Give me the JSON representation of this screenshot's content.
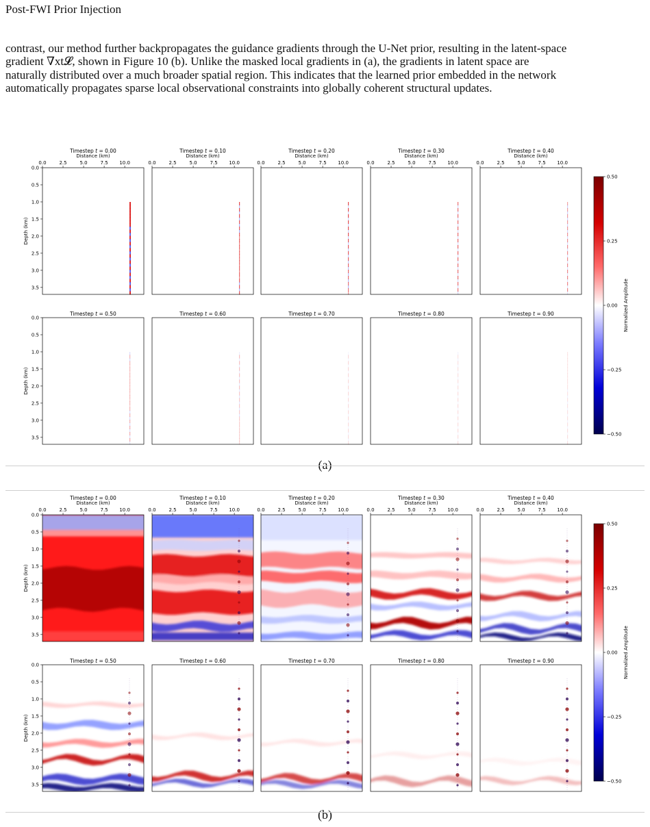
{
  "page": {
    "running_header": "Post-FWI Prior Injection",
    "paragraph_lines": [
      "contrast, our method further backpropagates the guidance gradients through the U-Net prior, resulting in the latent-space",
      "gradient ∇xt𝓛, shown in Figure 10 (b). Unlike the masked local gradients in (a), the gradients in latent space are",
      "naturally distributed over a much broader spatial region. This indicates that the learned prior embedded in the network",
      "automatically propagates sparse local observational constraints into globally coherent structural updates."
    ]
  },
  "figure": {
    "panels": [
      {
        "caption": "(a)",
        "kind": "masked-local-gradient"
      },
      {
        "caption": "(b)",
        "kind": "latent-space-gradient"
      }
    ],
    "subplot_title_prefix": "Timestep",
    "timesteps": [
      "0.00",
      "0.10",
      "0.20",
      "0.30",
      "0.40",
      "0.50",
      "0.60",
      "0.70",
      "0.80",
      "0.90"
    ],
    "x_axis_label": "Distance (km)",
    "x_ticks": [
      "0.0",
      "2.5",
      "5.0",
      "7.5",
      "10.0"
    ],
    "y_axis_label": "Depth (km)",
    "y_ticks": [
      "0.0",
      "0.5",
      "1.0",
      "1.5",
      "2.0",
      "2.5",
      "3.0",
      "3.5"
    ],
    "colorbar_label": "Normalized Amplitude",
    "colorbar_ticks": [
      "0.50",
      "0.25",
      "0.00",
      "−0.25",
      "−0.50"
    ],
    "colormap": "seismic",
    "colors": {
      "high": "#7a0000",
      "mid": "#ffffff",
      "low": "#00004d"
    }
  }
}
